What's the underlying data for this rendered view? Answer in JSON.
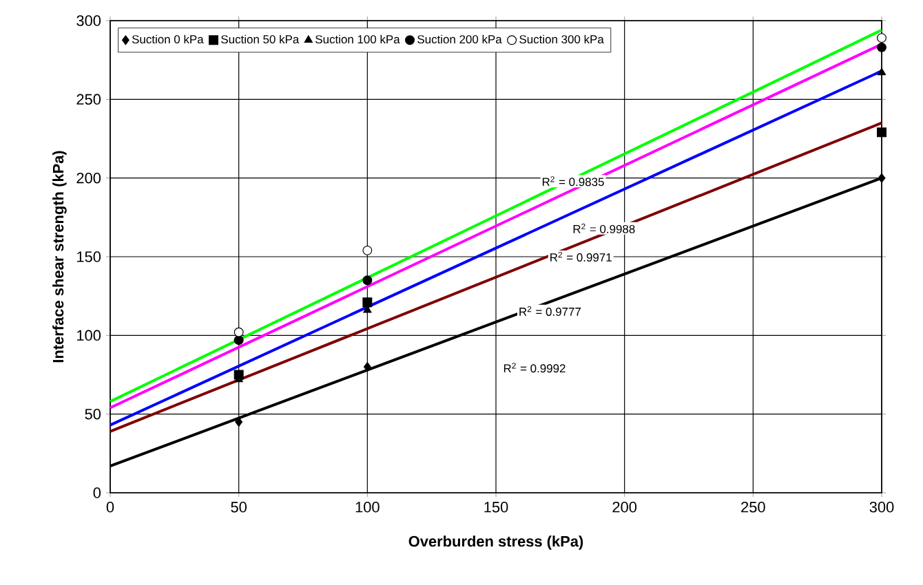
{
  "chart_data": {
    "type": "scatter",
    "xlabel": "Overburden stress (kPa)",
    "ylabel": "Interface shear strength (kPa)",
    "xlim": [
      0,
      300
    ],
    "ylim": [
      0,
      300
    ],
    "xticks": [
      0,
      50,
      100,
      150,
      200,
      250,
      300
    ],
    "yticks": [
      0,
      50,
      100,
      150,
      200,
      250,
      300
    ],
    "grid": true,
    "legend": "top left",
    "series": [
      {
        "name": "Suction 0 kPa",
        "color": "#000000",
        "marker": "diamond",
        "x": [
          50,
          100,
          300
        ],
        "values": [
          45,
          80,
          200
        ]
      },
      {
        "name": "Suction 50 kPa",
        "color": "#000000",
        "marker": "square",
        "x": [
          50,
          100,
          300
        ],
        "values": [
          75,
          121,
          229
        ]
      },
      {
        "name": "Suction 100 kPa",
        "color": "#000000",
        "marker": "triangle",
        "x": [
          50,
          100,
          300
        ],
        "values": [
          72,
          116,
          267
        ]
      },
      {
        "name": "Suction 200 kPa",
        "color": "#000000",
        "marker": "circle",
        "x": [
          50,
          100,
          300
        ],
        "values": [
          97,
          135,
          283
        ]
      },
      {
        "name": "Suction 300 kPa",
        "color": "#ffffff",
        "marker": "circle",
        "x": [
          50,
          100,
          300
        ],
        "values": [
          102,
          154,
          289
        ]
      },
      {
        "type": "line",
        "color": "#000000",
        "marker": "none",
        "x": [
          0,
          300
        ],
        "values": [
          17,
          200
        ]
      },
      {
        "type": "line",
        "color": "#800000",
        "marker": "none",
        "x": [
          0,
          300
        ],
        "values": [
          39,
          235
        ]
      },
      {
        "type": "line",
        "color": "#0000ff",
        "marker": "none",
        "x": [
          0,
          300
        ],
        "values": [
          43,
          268
        ]
      },
      {
        "type": "line",
        "color": "#ff00ff",
        "marker": "none",
        "x": [
          0,
          300
        ],
        "values": [
          54,
          285
        ]
      },
      {
        "type": "line",
        "color": "#00ff00",
        "marker": "none",
        "x": [
          0,
          300
        ],
        "values": [
          58,
          294
        ]
      }
    ],
    "annotations": [
      "R$^{2}$ = 0.9835",
      "R$^{2}$ = 0.9988",
      "R$^{2}$ = 0.9971",
      "R$^{2}$ = 0.9777",
      "R$^{2}$ = 0.9992"
    ]
  }
}
